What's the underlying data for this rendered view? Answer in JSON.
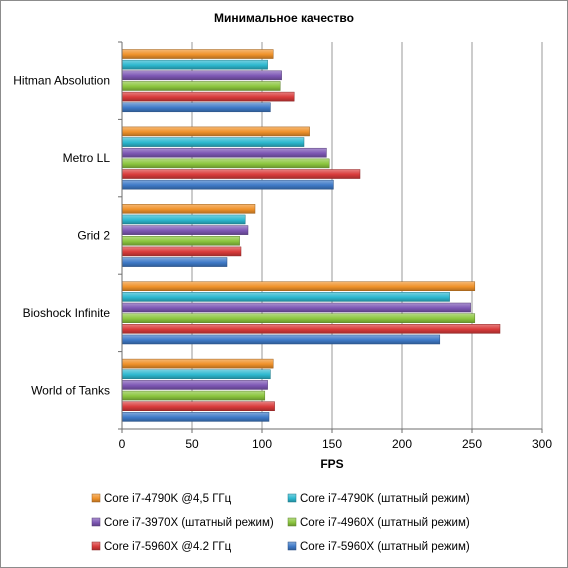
{
  "chart_data": {
    "type": "bar",
    "orientation": "horizontal",
    "title": "Минимальное  качество",
    "xlabel": "FPS",
    "ylabel": "",
    "xlim": [
      0,
      300
    ],
    "x_ticks": [
      0,
      50,
      100,
      150,
      200,
      250,
      300
    ],
    "grid": true,
    "legend_position": "bottom",
    "categories": [
      "Hitman Absolution",
      "Metro LL",
      "Grid 2",
      "Bioshock Infinite",
      "World of Tanks"
    ],
    "series": [
      {
        "name": "Core i7-4790K @4,5 ГГц",
        "color": "#f0922a",
        "values": [
          108,
          134,
          95,
          252,
          108
        ]
      },
      {
        "name": "Core i7-4790K (штатный режим)",
        "color": "#2db8cf",
        "values": [
          104,
          130,
          88,
          234,
          106
        ]
      },
      {
        "name": "Core i7-3970X (штатный режим)",
        "color": "#7e58b5",
        "values": [
          114,
          146,
          90,
          249,
          104
        ]
      },
      {
        "name": "Core i7-4960X (штатный режим)",
        "color": "#8cc63f",
        "values": [
          113,
          148,
          84,
          252,
          102
        ]
      },
      {
        "name": "Core i7-5960X @4.2 ГГц",
        "color": "#d93b3b",
        "values": [
          123,
          170,
          85,
          270,
          109
        ]
      },
      {
        "name": "Core i7-5960X (штатный режим)",
        "color": "#3f7ac8",
        "values": [
          106,
          151,
          75,
          227,
          105
        ]
      }
    ]
  }
}
